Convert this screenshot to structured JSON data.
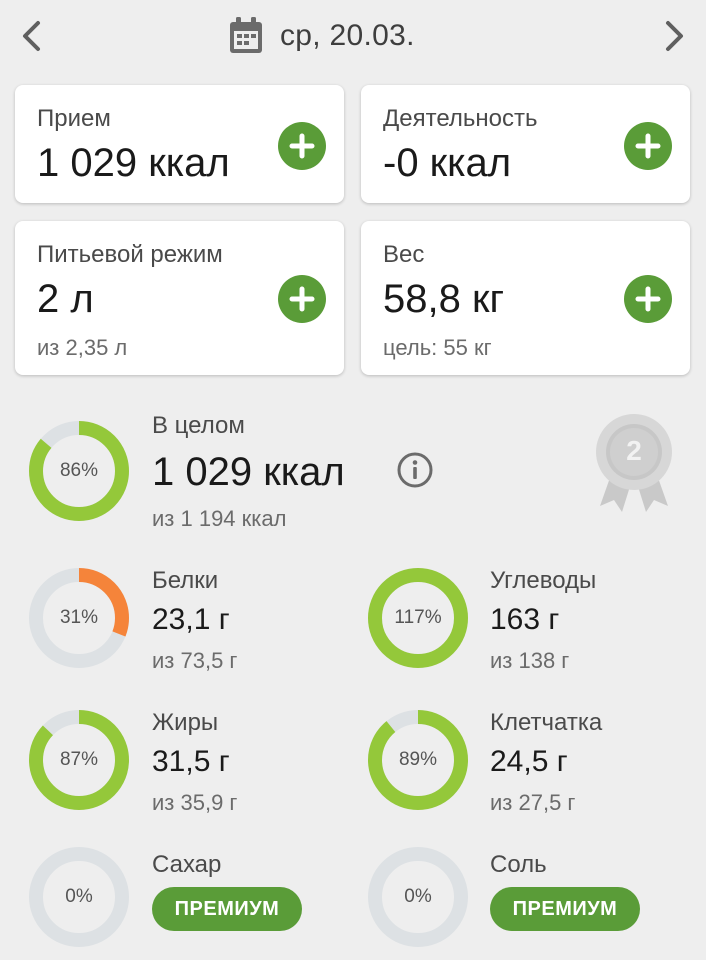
{
  "header": {
    "date": "ср, 20.03."
  },
  "cards": {
    "intake": {
      "label": "Прием",
      "value": "1 029 ккал"
    },
    "activity": {
      "label": "Деятельность",
      "value": "-0 ккал"
    },
    "water": {
      "label": "Питьевой режим",
      "value": "2 л",
      "sub": "из 2,35 л"
    },
    "weight": {
      "label": "Вес",
      "value": "58,8 кг",
      "sub": "цель: 55 кг"
    }
  },
  "overall": {
    "label": "В целом",
    "value": "1 029 ккал",
    "sub": "из 1 194 ккал",
    "percent_label": "86%",
    "progress": 0.86,
    "badge_number": "2"
  },
  "nutrients": [
    {
      "key": "protein",
      "label": "Белки",
      "value": "23,1 г",
      "sub": "из 73,5 г",
      "percent_label": "31%",
      "progress": 0.31,
      "color": "#f5843a"
    },
    {
      "key": "carbs",
      "label": "Углеводы",
      "value": "163 г",
      "sub": "из 138 г",
      "percent_label": "117%",
      "progress": 1.0,
      "color": "#94c83a"
    },
    {
      "key": "fat",
      "label": "Жиры",
      "value": "31,5 г",
      "sub": "из 35,9 г",
      "percent_label": "87%",
      "progress": 0.87,
      "color": "#94c83a"
    },
    {
      "key": "fiber",
      "label": "Клетчатка",
      "value": "24,5 г",
      "sub": "из 27,5 г",
      "percent_label": "89%",
      "progress": 0.89,
      "color": "#94c83a"
    },
    {
      "key": "sugar",
      "label": "Сахар",
      "percent_label": "0%",
      "progress": 0,
      "premium_label": "ПРЕМИУМ"
    },
    {
      "key": "salt",
      "label": "Соль",
      "percent_label": "0%",
      "progress": 0,
      "premium_label": "ПРЕМИУМ"
    }
  ],
  "colors": {
    "accent": "#5a9c38",
    "ring_green": "#94c83a",
    "ring_orange": "#f5843a",
    "ring_track": "#dde1e4"
  }
}
